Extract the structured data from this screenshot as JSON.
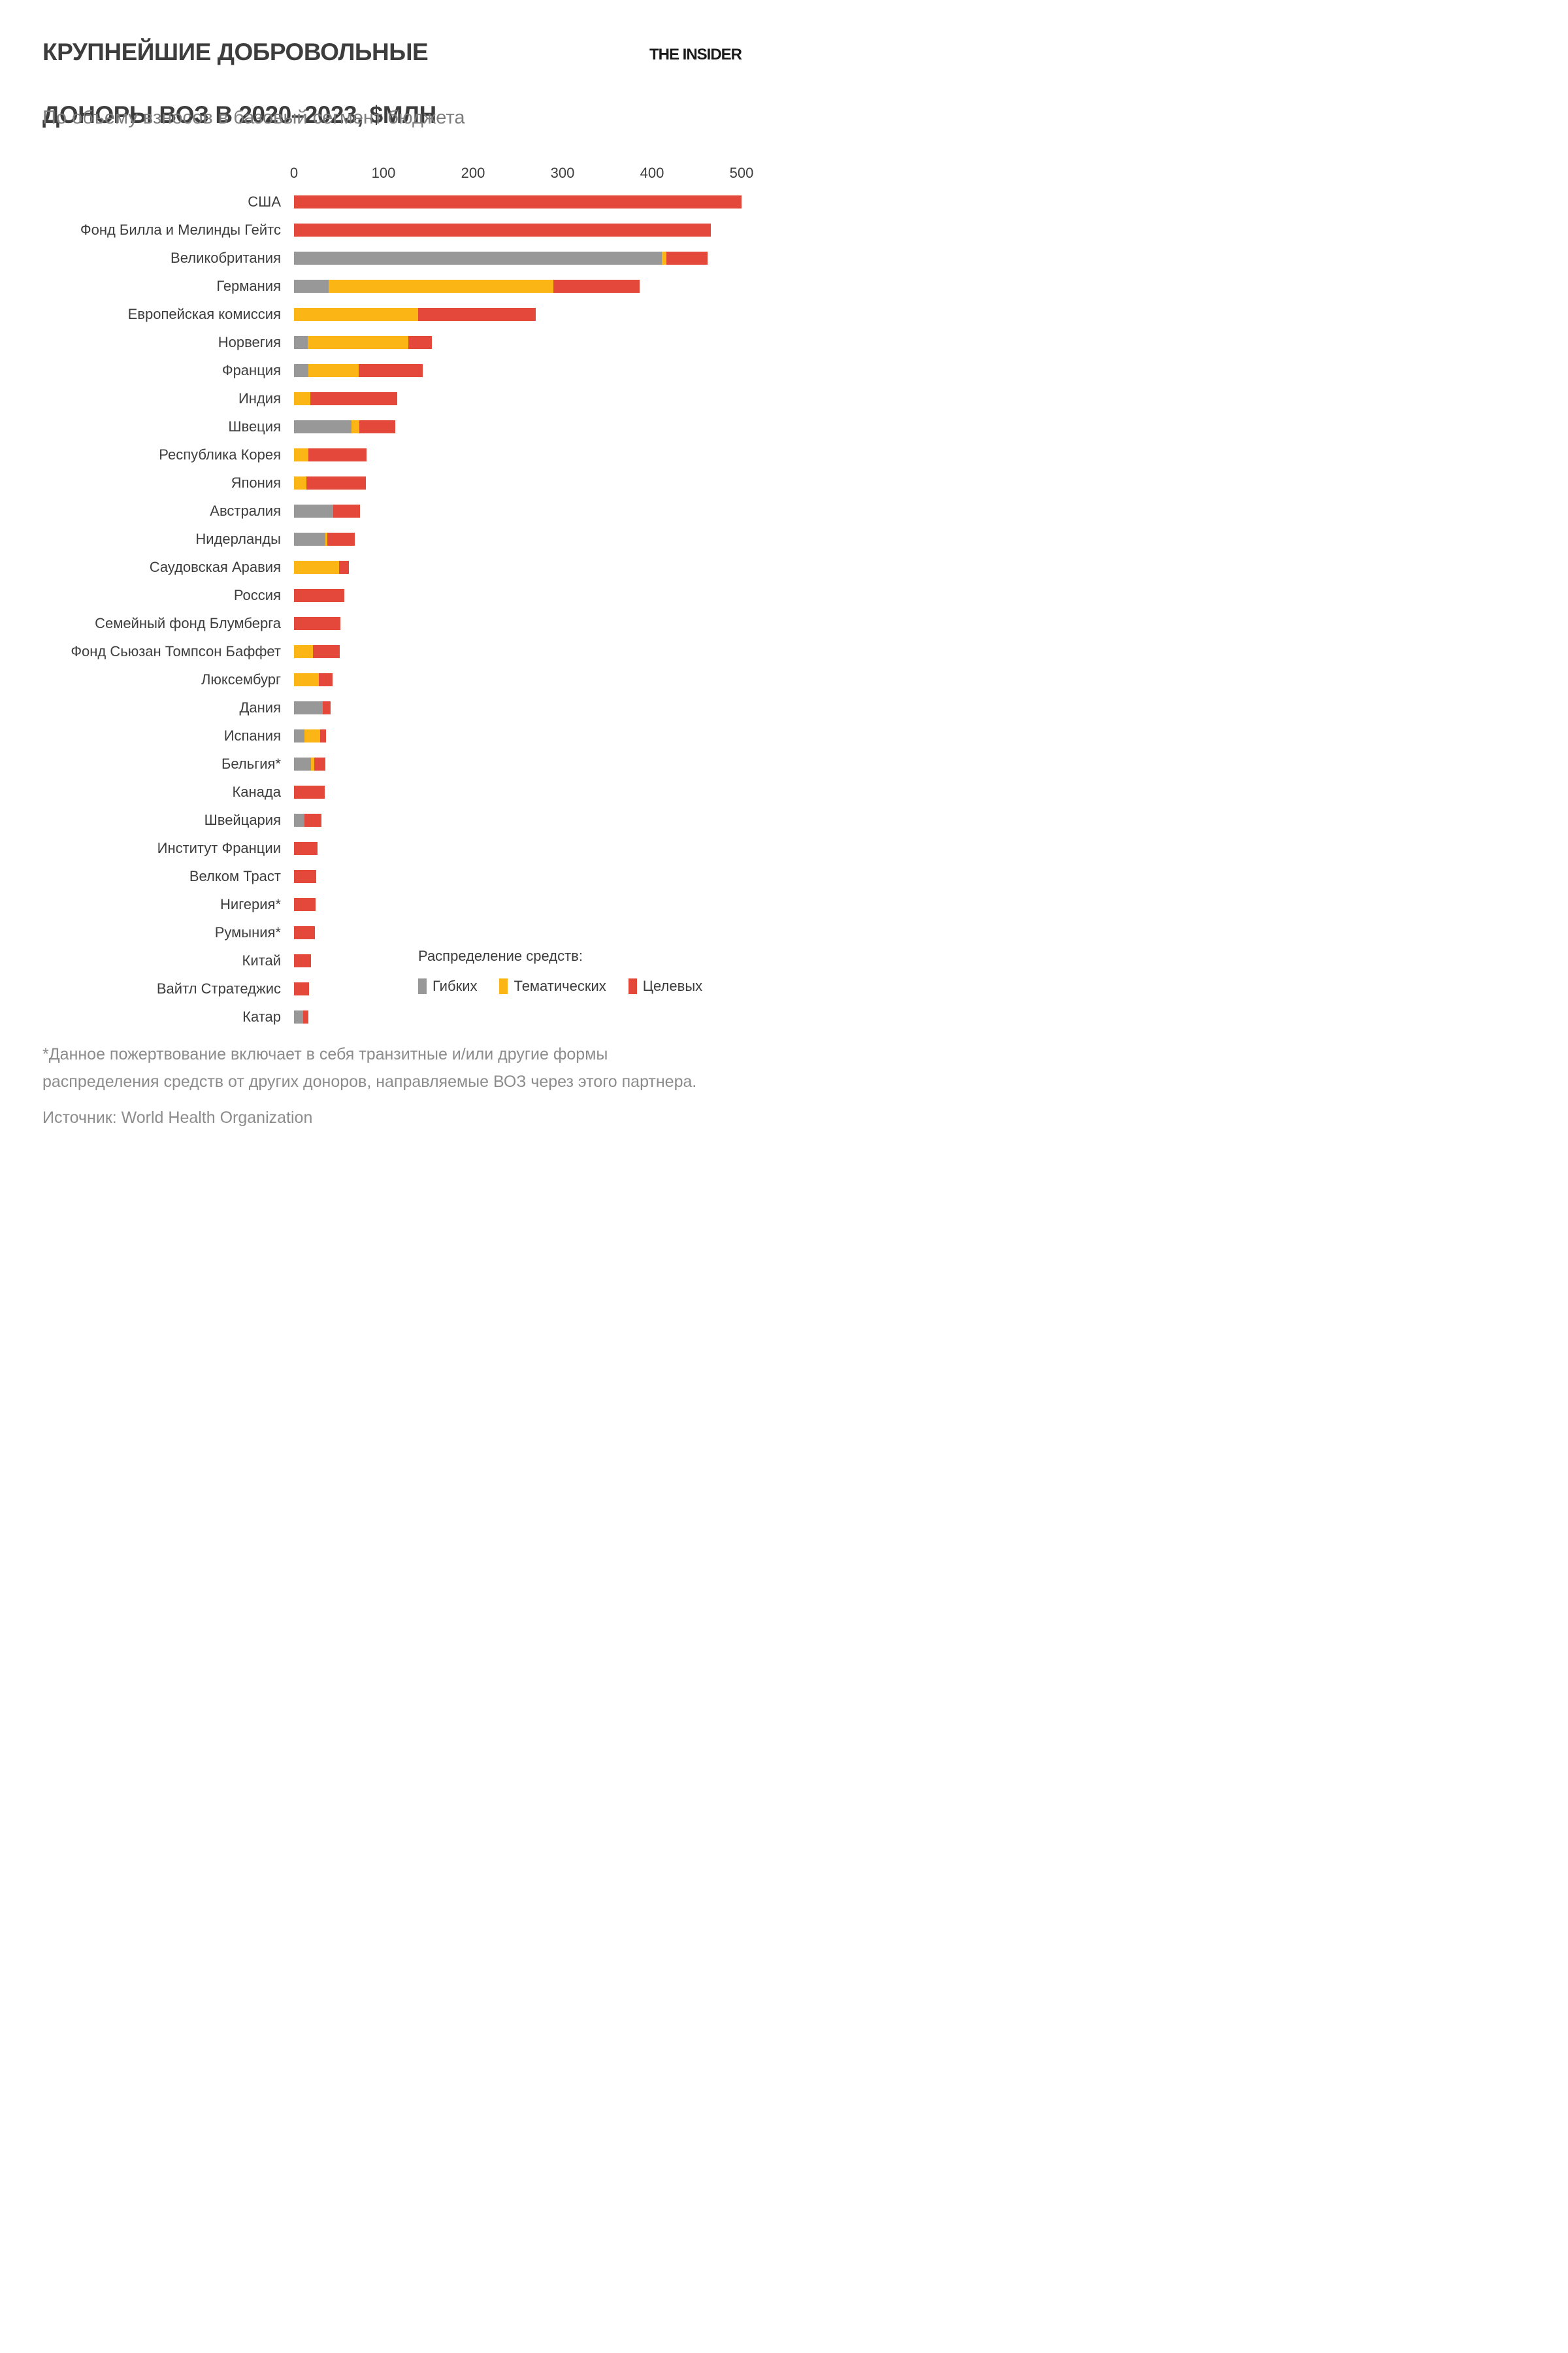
{
  "page": {
    "title_line1": "КРУПНЕЙШИЕ ДОБРОВОЛЬНЫЕ",
    "title_line2": "ДОНОРЫ ВОЗ В 2020–2023, $МЛН",
    "subtitle": "По объему взносов в базовый сегмент бюджета",
    "logo": "THE INSIDER",
    "footnote_line1": "*Данное пожертвование включает в себя транзитные и/или другие формы",
    "footnote_line2": "распределения средств от других доноров, направляемые ВОЗ через этого партнера.",
    "source": "Источник: World Health Organization"
  },
  "colors": {
    "flexible": "#989898",
    "thematic": "#FBB615",
    "earmarked": "#E4483B"
  },
  "chart_data": {
    "type": "bar",
    "orientation": "horizontal",
    "stacked": true,
    "title": "Крупнейшие добровольные доноры ВОЗ в 2020–2023, $млн",
    "xlabel": "$млн",
    "ylabel": "",
    "xlim": [
      0,
      500
    ],
    "x_ticks": [
      0,
      100,
      200,
      300,
      400,
      500
    ],
    "grid": false,
    "legend": {
      "title": "Распределение средств:",
      "position": "bottom-right-inside",
      "items": [
        {
          "key": "flexible",
          "label": "Гибких",
          "color": "#989898"
        },
        {
          "key": "thematic",
          "label": "Тематических",
          "color": "#FBB615"
        },
        {
          "key": "earmarked",
          "label": "Целевых",
          "color": "#E4483B"
        }
      ]
    },
    "series_order": [
      "flexible",
      "thematic",
      "earmarked"
    ],
    "rows": [
      {
        "label": "США",
        "flexible": 0,
        "thematic": 0,
        "earmarked": 500
      },
      {
        "label": "Фонд Билла и Мелинды Гейтс",
        "flexible": 0,
        "thematic": 0,
        "earmarked": 466
      },
      {
        "label": "Великобритания",
        "flexible": 411,
        "thematic": 5,
        "earmarked": 46
      },
      {
        "label": "Германия",
        "flexible": 39,
        "thematic": 251,
        "earmarked": 96
      },
      {
        "label": "Европейская комиссия",
        "flexible": 0,
        "thematic": 139,
        "earmarked": 131
      },
      {
        "label": "Норвегия",
        "flexible": 15,
        "thematic": 113,
        "earmarked": 26
      },
      {
        "label": "Франция",
        "flexible": 16,
        "thematic": 56,
        "earmarked": 72
      },
      {
        "label": "Индия",
        "flexible": 0,
        "thematic": 18,
        "earmarked": 97
      },
      {
        "label": "Швеция",
        "flexible": 64,
        "thematic": 9,
        "earmarked": 40
      },
      {
        "label": "Республика Корея",
        "flexible": 0,
        "thematic": 16,
        "earmarked": 65
      },
      {
        "label": "Япония",
        "flexible": 0,
        "thematic": 14,
        "earmarked": 66
      },
      {
        "label": "Австралия",
        "flexible": 44,
        "thematic": 0,
        "earmarked": 30
      },
      {
        "label": "Нидерланды",
        "flexible": 35,
        "thematic": 2,
        "earmarked": 31
      },
      {
        "label": "Саудовская Аравия",
        "flexible": 0,
        "thematic": 50,
        "earmarked": 11
      },
      {
        "label": "Россия",
        "flexible": 0,
        "thematic": 0,
        "earmarked": 56
      },
      {
        "label": "Семейный фонд Блумберга",
        "flexible": 0,
        "thematic": 0,
        "earmarked": 52
      },
      {
        "label": "Фонд Сьюзан Томпсон Баффет",
        "flexible": 0,
        "thematic": 21,
        "earmarked": 30
      },
      {
        "label": "Люксембург",
        "flexible": 0,
        "thematic": 28,
        "earmarked": 15
      },
      {
        "label": "Дания",
        "flexible": 32,
        "thematic": 0,
        "earmarked": 9
      },
      {
        "label": "Испания",
        "flexible": 12,
        "thematic": 17,
        "earmarked": 7
      },
      {
        "label": "Бельгия*",
        "flexible": 19,
        "thematic": 4,
        "earmarked": 12
      },
      {
        "label": "Канада",
        "flexible": 0,
        "thematic": 0,
        "earmarked": 34
      },
      {
        "label": "Швейцария",
        "flexible": 12,
        "thematic": 0,
        "earmarked": 19
      },
      {
        "label": "Институт Франции",
        "flexible": 0,
        "thematic": 0,
        "earmarked": 26
      },
      {
        "label": "Велком Траст",
        "flexible": 0,
        "thematic": 0,
        "earmarked": 25
      },
      {
        "label": "Нигерия*",
        "flexible": 0,
        "thematic": 0,
        "earmarked": 24
      },
      {
        "label": "Румыния*",
        "flexible": 0,
        "thematic": 0,
        "earmarked": 23
      },
      {
        "label": "Китай",
        "flexible": 0,
        "thematic": 0,
        "earmarked": 19
      },
      {
        "label": "Вайтл Стратеджис",
        "flexible": 0,
        "thematic": 0,
        "earmarked": 17
      },
      {
        "label": "Катар",
        "flexible": 10,
        "thematic": 0,
        "earmarked": 6
      }
    ]
  }
}
